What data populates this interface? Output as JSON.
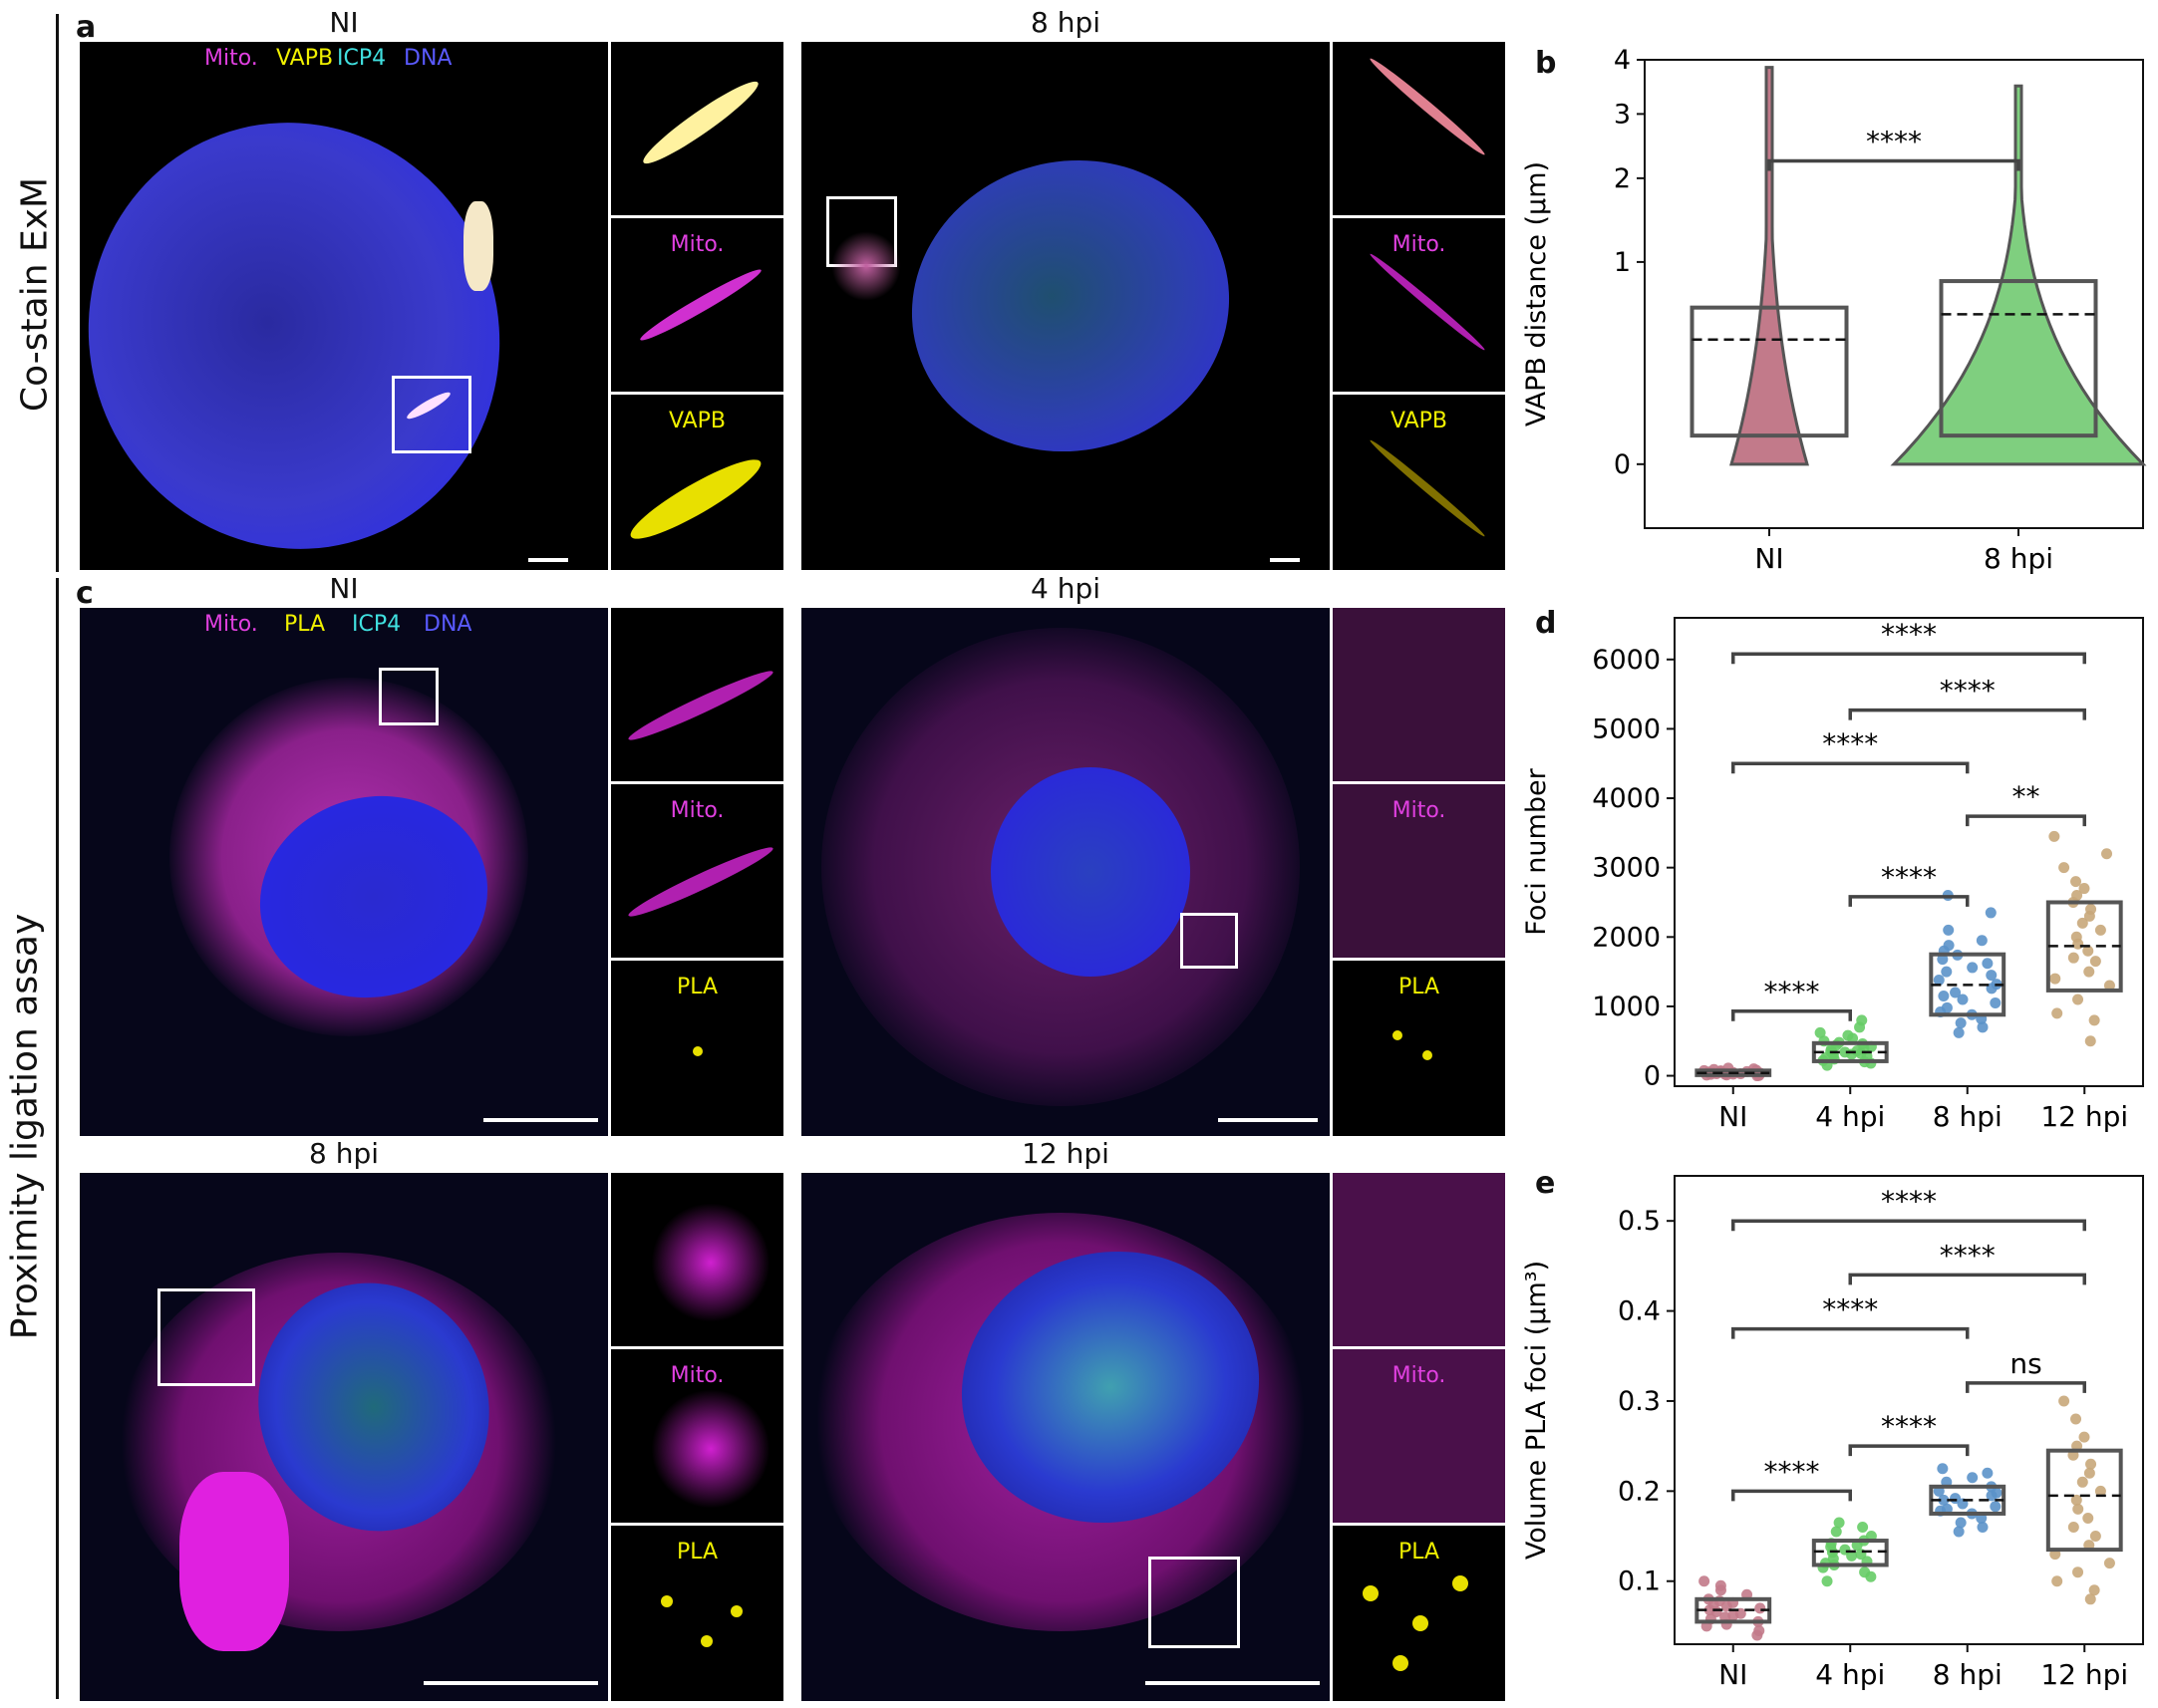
{
  "row_labels": {
    "top": "Co-stain ExM",
    "bottom": "Proximity ligation assay"
  },
  "panel_letters": {
    "a": "a",
    "b": "b",
    "c": "c",
    "d": "d",
    "e": "e"
  },
  "panel_a": {
    "titles": [
      "NI",
      "8 hpi"
    ],
    "channel_legend": {
      "mito": "Mito.",
      "vapb": "VAPB",
      "icp4": "ICP4",
      "dna": "DNA"
    },
    "inset_labels": [
      "Mito.",
      "VAPB"
    ]
  },
  "panel_c": {
    "titles": [
      "NI",
      "4 hpi",
      "8 hpi",
      "12 hpi"
    ],
    "channel_legend": {
      "mito": "Mito.",
      "pla": "PLA",
      "icp4": "ICP4",
      "dna": "DNA"
    },
    "inset_labels": [
      "Mito.",
      "PLA"
    ]
  },
  "colors": {
    "mito": "#e040e0",
    "vapb": "#f0f000",
    "icp4": "#40e0e0",
    "dna": "#5a5aff",
    "pla": "#f0f000",
    "NI": "#c27a8a",
    "4 hpi": "#66cc66",
    "8 hpi": "#5b92c9",
    "12 hpi": "#c8a77a",
    "violin_8hpi": "#7fcf7f"
  },
  "chart_data": [
    {
      "panel": "b",
      "type": "violin",
      "categories": [
        "NI",
        "8 hpi"
      ],
      "ylabel": "VAPB distance (µm)",
      "yticks": [
        0,
        1,
        2,
        3,
        4
      ],
      "yscale": "sqrt",
      "ylim": [
        -0.1,
        4
      ],
      "box_q1": [
        0.02,
        0.02
      ],
      "box_q3": [
        0.6,
        0.82
      ],
      "mean": [
        0.38,
        0.55
      ],
      "violin_max": [
        3.85,
        3.5
      ],
      "significance": [
        {
          "from": "NI",
          "to": "8 hpi",
          "label": "****",
          "y": 2.25
        }
      ]
    },
    {
      "panel": "d",
      "type": "box-strip",
      "categories": [
        "NI",
        "4 hpi",
        "8 hpi",
        "12 hpi"
      ],
      "ylabel": "Foci number",
      "yticks": [
        0,
        1000,
        2000,
        3000,
        4000,
        5000,
        6000
      ],
      "ylim": [
        -150,
        6600
      ],
      "box_q1": [
        10,
        210,
        880,
        1230
      ],
      "box_q3": [
        75,
        470,
        1750,
        2500
      ],
      "mean": [
        40,
        340,
        1310,
        1870
      ],
      "points": [
        [
          0,
          5,
          10,
          12,
          15,
          20,
          22,
          25,
          30,
          30,
          35,
          38,
          40,
          45,
          48,
          50,
          55,
          60,
          65,
          70,
          75,
          80,
          90,
          100,
          110
        ],
        [
          150,
          180,
          200,
          220,
          240,
          260,
          280,
          300,
          310,
          320,
          330,
          340,
          350,
          360,
          380,
          400,
          420,
          440,
          460,
          480,
          500,
          540,
          580,
          620,
          700,
          800
        ],
        [
          620,
          700,
          760,
          820,
          880,
          920,
          980,
          1050,
          1100,
          1150,
          1200,
          1260,
          1320,
          1380,
          1450,
          1500,
          1560,
          1620,
          1680,
          1740,
          1800,
          1880,
          1950,
          2100,
          2350,
          2600
        ],
        [
          500,
          800,
          900,
          1100,
          1300,
          1400,
          1500,
          1650,
          1700,
          1800,
          1900,
          2000,
          2100,
          2200,
          2300,
          2400,
          2500,
          2600,
          2700,
          2800,
          3000,
          3200,
          3450
        ]
      ],
      "significance": [
        {
          "from": "NI",
          "to": "4 hpi",
          "label": "****",
          "y": 930
        },
        {
          "from": "4 hpi",
          "to": "8 hpi",
          "label": "****",
          "y": 2580
        },
        {
          "from": "8 hpi",
          "to": "12 hpi",
          "label": "**",
          "y": 3740
        },
        {
          "from": "NI",
          "to": "8 hpi",
          "label": "****",
          "y": 4500
        },
        {
          "from": "4 hpi",
          "to": "12 hpi",
          "label": "****",
          "y": 5270
        },
        {
          "from": "NI",
          "to": "12 hpi",
          "label": "****",
          "y": 6080
        }
      ]
    },
    {
      "panel": "e",
      "type": "box-strip",
      "categories": [
        "NI",
        "4 hpi",
        "8 hpi",
        "12 hpi"
      ],
      "ylabel": "Volume PLA foci (µm³)",
      "yticks": [
        0.1,
        0.2,
        0.3,
        0.4,
        0.5
      ],
      "ylim": [
        0.03,
        0.55
      ],
      "box_q1": [
        0.055,
        0.118,
        0.175,
        0.135
      ],
      "box_q3": [
        0.08,
        0.145,
        0.205,
        0.245
      ],
      "mean": [
        0.068,
        0.133,
        0.19,
        0.195
      ],
      "points": [
        [
          0.04,
          0.045,
          0.05,
          0.052,
          0.055,
          0.058,
          0.06,
          0.062,
          0.064,
          0.066,
          0.068,
          0.07,
          0.072,
          0.074,
          0.076,
          0.078,
          0.08,
          0.085,
          0.09,
          0.095,
          0.1
        ],
        [
          0.1,
          0.105,
          0.11,
          0.115,
          0.118,
          0.12,
          0.122,
          0.125,
          0.128,
          0.13,
          0.132,
          0.135,
          0.138,
          0.14,
          0.142,
          0.145,
          0.15,
          0.155,
          0.16,
          0.165
        ],
        [
          0.155,
          0.16,
          0.165,
          0.17,
          0.175,
          0.178,
          0.18,
          0.183,
          0.186,
          0.19,
          0.192,
          0.195,
          0.198,
          0.2,
          0.205,
          0.21,
          0.215,
          0.22,
          0.225
        ],
        [
          0.08,
          0.09,
          0.1,
          0.11,
          0.12,
          0.13,
          0.14,
          0.15,
          0.16,
          0.17,
          0.18,
          0.19,
          0.2,
          0.21,
          0.22,
          0.23,
          0.24,
          0.25,
          0.26,
          0.28,
          0.3
        ]
      ],
      "significance": [
        {
          "from": "NI",
          "to": "4 hpi",
          "label": "****",
          "y": 0.2
        },
        {
          "from": "4 hpi",
          "to": "8 hpi",
          "label": "****",
          "y": 0.25
        },
        {
          "from": "8 hpi",
          "to": "12 hpi",
          "label": "ns",
          "y": 0.32
        },
        {
          "from": "NI",
          "to": "8 hpi",
          "label": "****",
          "y": 0.38
        },
        {
          "from": "4 hpi",
          "to": "12 hpi",
          "label": "****",
          "y": 0.44
        },
        {
          "from": "NI",
          "to": "12 hpi",
          "label": "****",
          "y": 0.5
        }
      ]
    }
  ]
}
